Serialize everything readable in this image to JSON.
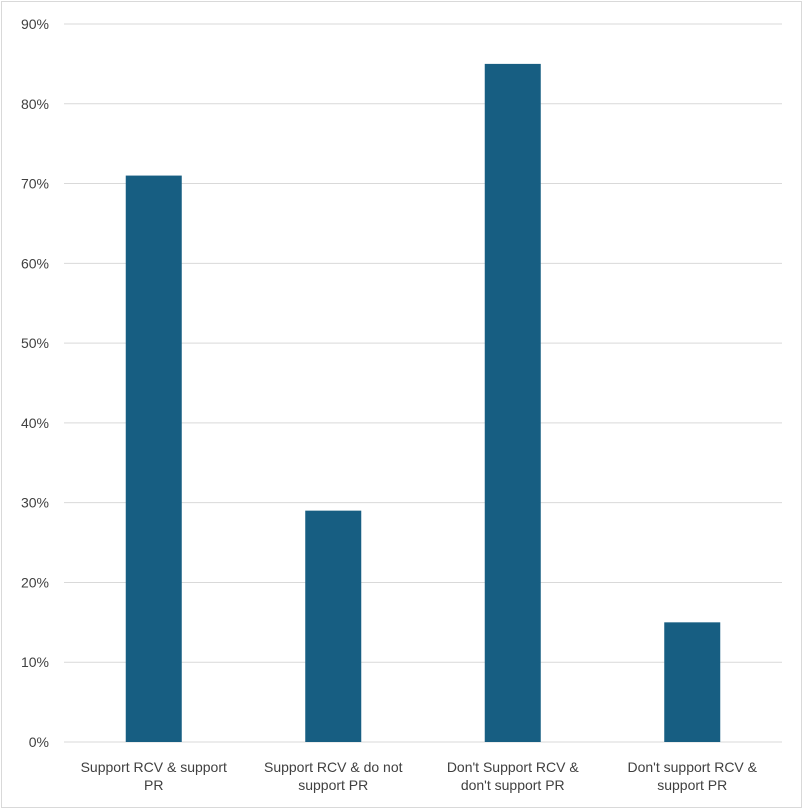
{
  "chart_data": {
    "type": "bar",
    "categories": [
      [
        "Support RCV & support",
        "PR"
      ],
      [
        "Support RCV & do not",
        "support PR"
      ],
      [
        "Don't Support RCV &",
        "don't support PR"
      ],
      [
        "Don't support RCV &",
        "support PR"
      ]
    ],
    "values": [
      71,
      29,
      85,
      15
    ],
    "ylim": [
      0,
      90
    ],
    "y_ticks": [
      0,
      10,
      20,
      30,
      40,
      50,
      60,
      70,
      80,
      90
    ],
    "y_tick_labels": [
      "0%",
      "10%",
      "20%",
      "30%",
      "40%",
      "50%",
      "60%",
      "70%",
      "80%",
      "90%"
    ],
    "grid": true,
    "bar_color": "#175e82",
    "grid_color": "#d9d9d9"
  }
}
